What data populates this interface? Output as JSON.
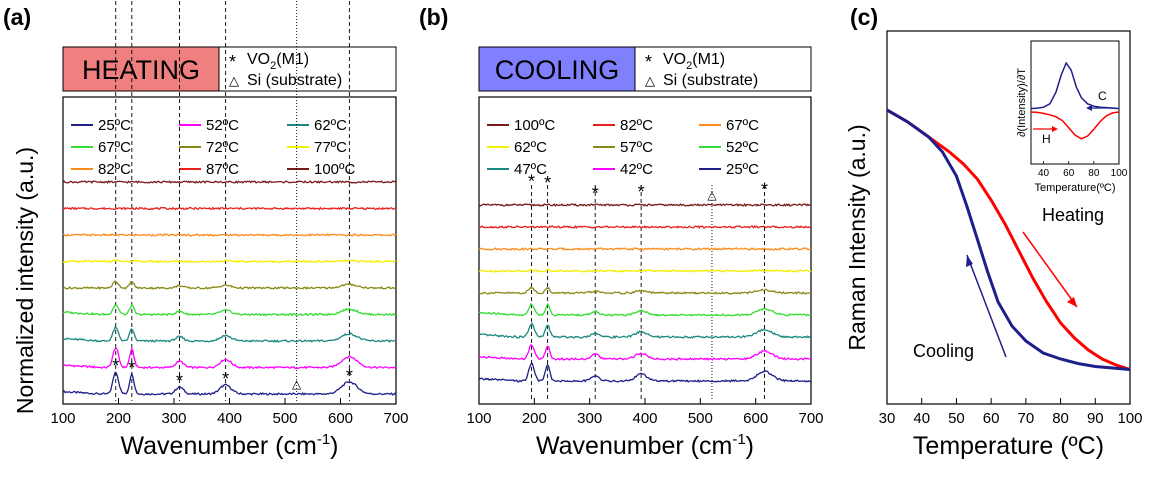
{
  "chart_data": [
    {
      "panel_label": "(a)",
      "type": "line",
      "banner": "HEATING",
      "banner_color": "#f08080",
      "marker_legend": [
        {
          "symbol": "*",
          "text": "VO",
          "sub": "2",
          "suffix": "(M1)"
        },
        {
          "symbol": "△",
          "text": "Si (substrate)"
        }
      ],
      "xlabel": "Wavenumber (cm",
      "xlabel_sup": "-1",
      "xlabel_end": ")",
      "ylabel": "Normalized intensity (a.u.)",
      "xlim": [
        100,
        700
      ],
      "xticks": [
        100,
        200,
        300,
        400,
        500,
        600,
        700
      ],
      "peak_lines_dashed": [
        195,
        224,
        310,
        393,
        616
      ],
      "peak_line_dotted": [
        521
      ],
      "peak_markers": [
        {
          "x": 195,
          "symbol": "*"
        },
        {
          "x": 224,
          "symbol": "*"
        },
        {
          "x": 310,
          "symbol": "*"
        },
        {
          "x": 393,
          "symbol": "*"
        },
        {
          "x": 521,
          "symbol": "△"
        },
        {
          "x": 616,
          "symbol": "*"
        }
      ],
      "series": [
        {
          "name": "25ºC",
          "color": "#1f1f8c",
          "strength": 1.0
        },
        {
          "name": "52ºC",
          "color": "#ff00ff",
          "strength": 0.9
        },
        {
          "name": "62ºC",
          "color": "#1a8a80",
          "strength": 0.6
        },
        {
          "name": "67ºC",
          "color": "#33dd33",
          "strength": 0.45
        },
        {
          "name": "72ºC",
          "color": "#8a8a1a",
          "strength": 0.3
        },
        {
          "name": "77ºC",
          "color": "#f0f000",
          "strength": 0.05
        },
        {
          "name": "82ºC",
          "color": "#ff8c1a",
          "strength": 0.0
        },
        {
          "name": "87ºC",
          "color": "#e82020",
          "strength": 0.0
        },
        {
          "name": "100ºC",
          "color": "#7a1a1a",
          "strength": 0.0
        }
      ]
    },
    {
      "panel_label": "(b)",
      "type": "line",
      "banner": "COOLING",
      "banner_color": "#8080ff",
      "marker_legend": [
        {
          "symbol": "*",
          "text": "VO",
          "sub": "2",
          "suffix": "(M1)"
        },
        {
          "symbol": "△",
          "text": "Si (substrate)"
        }
      ],
      "xlabel": "Wavenumber (cm",
      "xlabel_sup": "-1",
      "xlabel_end": ")",
      "xlim": [
        100,
        700
      ],
      "xticks": [
        100,
        200,
        300,
        400,
        500,
        600,
        700
      ],
      "peak_lines_dashed": [
        195,
        224,
        310,
        393,
        616
      ],
      "peak_line_dotted": [
        521
      ],
      "peak_markers": [
        {
          "x": 195,
          "symbol": "*"
        },
        {
          "x": 224,
          "symbol": "*"
        },
        {
          "x": 310,
          "symbol": "*"
        },
        {
          "x": 393,
          "symbol": "*"
        },
        {
          "x": 521,
          "symbol": "△"
        },
        {
          "x": 616,
          "symbol": "*"
        }
      ],
      "series": [
        {
          "name": "100ºC",
          "color": "#7a1a1a",
          "strength": 0.0
        },
        {
          "name": "82ºC",
          "color": "#e82020",
          "strength": 0.0
        },
        {
          "name": "67ºC",
          "color": "#ff8c1a",
          "strength": 0.0
        },
        {
          "name": "62ºC",
          "color": "#f0f000",
          "strength": 0.05
        },
        {
          "name": "57ºC",
          "color": "#8a8a1a",
          "strength": 0.25
        },
        {
          "name": "52ºC",
          "color": "#33dd33",
          "strength": 0.5
        },
        {
          "name": "47ºC",
          "color": "#1a8a80",
          "strength": 0.6
        },
        {
          "name": "42ºC",
          "color": "#ff00ff",
          "strength": 0.65
        },
        {
          "name": "25ºC",
          "color": "#1f1f8c",
          "strength": 0.8
        }
      ]
    },
    {
      "panel_label": "(c)",
      "type": "line",
      "xlabel": "Temperature (ºC)",
      "ylabel": "Raman Intensity (a.u.)",
      "xlim": [
        30,
        100
      ],
      "xticks": [
        30,
        40,
        50,
        60,
        70,
        80,
        90,
        100
      ],
      "annotations": [
        "Heating",
        "Cooling"
      ],
      "series": [
        {
          "name": "Heating",
          "color": "#ff0000",
          "x": [
            30,
            36,
            42,
            48,
            52,
            56,
            60,
            64,
            68,
            72,
            76,
            80,
            84,
            88,
            92,
            96,
            100
          ],
          "y": [
            0.88,
            0.84,
            0.79,
            0.74,
            0.7,
            0.65,
            0.58,
            0.5,
            0.41,
            0.32,
            0.24,
            0.17,
            0.12,
            0.08,
            0.05,
            0.03,
            0.015
          ]
        },
        {
          "name": "Cooling",
          "color": "#1f1f8c",
          "x": [
            30,
            36,
            42,
            46,
            50,
            53,
            56,
            59,
            62,
            66,
            70,
            75,
            80,
            85,
            90,
            95,
            100
          ],
          "y": [
            0.88,
            0.84,
            0.79,
            0.74,
            0.66,
            0.56,
            0.45,
            0.34,
            0.24,
            0.16,
            0.11,
            0.07,
            0.05,
            0.035,
            0.025,
            0.02,
            0.015
          ]
        }
      ],
      "inset": {
        "ylabel": "∂(Intensity)/∂T",
        "xlabel": "Temperature(ºC)",
        "xlim": [
          30,
          100
        ],
        "xticks": [
          40,
          60,
          80,
          100
        ],
        "series": [
          {
            "name": "C",
            "color": "#1f1f8c",
            "x": [
              30,
              35,
              40,
              45,
              50,
              54,
              58,
              62,
              66,
              70,
              75,
              80,
              85,
              90,
              95,
              100
            ],
            "y": [
              0.05,
              0.06,
              0.08,
              0.15,
              0.4,
              0.75,
              1.0,
              0.85,
              0.5,
              0.28,
              0.15,
              0.1,
              0.08,
              0.07,
              0.06,
              0.05
            ]
          },
          {
            "name": "H",
            "color": "#ff0000",
            "x": [
              30,
              35,
              40,
              45,
              50,
              55,
              60,
              65,
              70,
              75,
              80,
              85,
              90,
              95,
              100
            ],
            "y": [
              -0.02,
              -0.03,
              -0.05,
              -0.08,
              -0.12,
              -0.2,
              -0.35,
              -0.5,
              -0.58,
              -0.52,
              -0.38,
              -0.22,
              -0.1,
              -0.04,
              -0.02
            ]
          }
        ]
      }
    }
  ]
}
